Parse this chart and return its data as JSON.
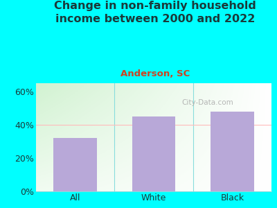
{
  "categories": [
    "All",
    "White",
    "Black"
  ],
  "values": [
    32.0,
    45.0,
    48.0
  ],
  "bar_color": "#B8A8D8",
  "title": "Change in non-family household\nincome between 2000 and 2022",
  "subtitle": "Anderson, SC",
  "title_color": "#1a3a3a",
  "subtitle_color": "#cc4422",
  "ylim": [
    0,
    65
  ],
  "yticks": [
    0,
    20,
    40,
    60
  ],
  "ytick_labels": [
    "0%",
    "20%",
    "40%",
    "60%"
  ],
  "background_outer": "#00FFFF",
  "plot_bg_topleft": "#c8e8c0",
  "plot_bg_topright": "#ffffff",
  "plot_bg_bottomleft": "#e0f0d8",
  "plot_bg_bottomright": "#ffffff",
  "reference_line_y": 40,
  "reference_line_color": "#ffbbbb",
  "watermark": "City-Data.com",
  "watermark_color": "#aaaaaa",
  "title_fontsize": 11.5,
  "subtitle_fontsize": 9.5,
  "tick_fontsize": 9,
  "bar_width": 0.55,
  "separator_color": "#88dddd"
}
